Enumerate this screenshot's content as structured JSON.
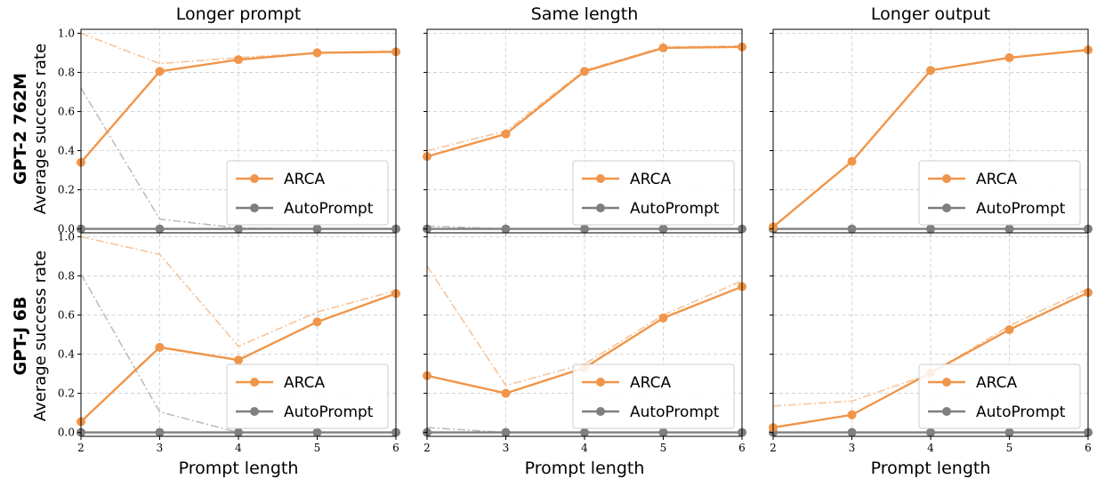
{
  "chart_data": {
    "type": "line",
    "columns": [
      "Longer prompt",
      "Same length",
      "Longer output"
    ],
    "rows": [
      "GPT-2 762M",
      "GPT-J 6B"
    ],
    "ylabel": "Average success rate",
    "xlabel": "Prompt length",
    "x": [
      2,
      3,
      4,
      5,
      6
    ],
    "xlim": [
      2,
      6
    ],
    "ylim": [
      -0.02,
      1.02
    ],
    "xticks": [
      "2",
      "3",
      "4",
      "5",
      "6"
    ],
    "yticks": [
      "0.0",
      "0.2",
      "0.4",
      "0.6",
      "0.8",
      "1.0"
    ],
    "grid": true,
    "legend": {
      "placement": "lower-right",
      "entries": [
        "ARCA",
        "AutoPrompt"
      ]
    },
    "colors": {
      "arca": "#f09549",
      "arca_light": "#f7c49a",
      "autoprompt": "#7f7f7f",
      "autoprompt_light": "#bdbdbd"
    },
    "panels": [
      [
        {
          "series": [
            {
              "name": "ARCA",
              "values": [
                0.34,
                0.805,
                0.865,
                0.9,
                0.905
              ]
            },
            {
              "name": "AutoPrompt",
              "values": [
                0.0,
                0.0,
                0.0,
                0.0,
                0.0
              ]
            }
          ],
          "upper": {
            "arca": [
              1.0,
              0.845,
              0.875,
              0.9,
              0.91
            ],
            "autoprompt": [
              0.72,
              0.05,
              0.005,
              0.0,
              0.0
            ]
          }
        },
        {
          "series": [
            {
              "name": "ARCA",
              "values": [
                0.37,
                0.485,
                0.805,
                0.925,
                0.93
              ]
            },
            {
              "name": "AutoPrompt",
              "values": [
                0.0,
                0.0,
                0.0,
                0.0,
                0.0
              ]
            }
          ],
          "upper": {
            "arca": [
              0.4,
              0.5,
              0.81,
              0.93,
              0.935
            ],
            "autoprompt": [
              0.015,
              0.0,
              0.0,
              0.0,
              0.0
            ]
          }
        },
        {
          "series": [
            {
              "name": "ARCA",
              "values": [
                0.01,
                0.345,
                0.81,
                0.875,
                0.915
              ]
            },
            {
              "name": "AutoPrompt",
              "values": [
                0.0,
                0.0,
                0.0,
                0.0,
                0.0
              ]
            }
          ],
          "upper": {
            "arca": [
              0.01,
              0.345,
              0.81,
              0.875,
              0.915
            ],
            "autoprompt": [
              0.0,
              0.0,
              0.0,
              0.0,
              0.0
            ]
          }
        }
      ],
      [
        {
          "series": [
            {
              "name": "ARCA",
              "values": [
                0.055,
                0.435,
                0.37,
                0.565,
                0.71
              ]
            },
            {
              "name": "AutoPrompt",
              "values": [
                0.0,
                0.0,
                0.0,
                0.0,
                0.0
              ]
            }
          ],
          "upper": {
            "arca": [
              1.0,
              0.91,
              0.44,
              0.615,
              0.725
            ],
            "autoprompt": [
              0.81,
              0.105,
              0.0,
              0.0,
              0.0
            ]
          }
        },
        {
          "series": [
            {
              "name": "ARCA",
              "values": [
                0.29,
                0.2,
                0.33,
                0.585,
                0.745
              ]
            },
            {
              "name": "AutoPrompt",
              "values": [
                0.0,
                0.0,
                0.0,
                0.0,
                0.0
              ]
            }
          ],
          "upper": {
            "arca": [
              0.85,
              0.24,
              0.35,
              0.6,
              0.775
            ],
            "autoprompt": [
              0.025,
              0.0,
              0.0,
              0.0,
              0.0
            ]
          }
        },
        {
          "series": [
            {
              "name": "ARCA",
              "values": [
                0.025,
                0.09,
                0.305,
                0.525,
                0.715
              ]
            },
            {
              "name": "AutoPrompt",
              "values": [
                0.0,
                0.0,
                0.0,
                0.0,
                0.0
              ]
            }
          ],
          "upper": {
            "arca": [
              0.135,
              0.16,
              0.3,
              0.545,
              0.735
            ],
            "autoprompt": [
              0.0,
              0.0,
              0.0,
              0.0,
              0.0
            ]
          }
        }
      ]
    ]
  }
}
